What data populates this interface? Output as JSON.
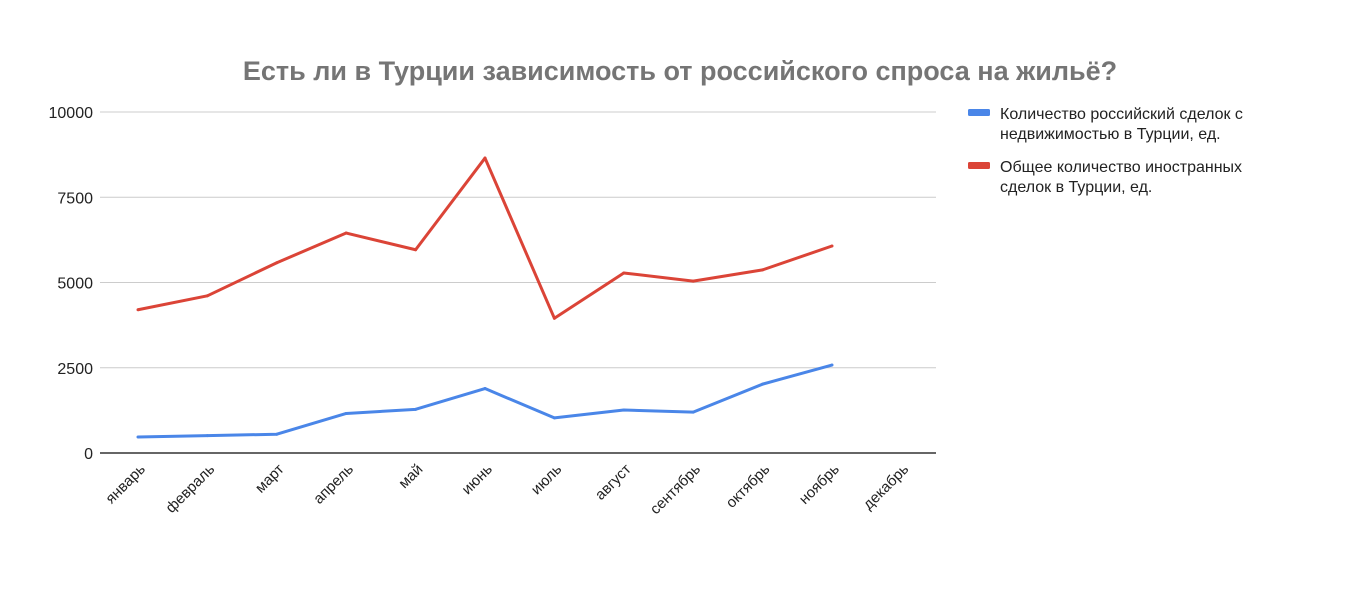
{
  "chart_data": {
    "type": "line",
    "title": "Есть ли в Турции зависимость от российского спроса на жильё?",
    "xlabel": "",
    "ylabel": "",
    "ylim": [
      0,
      10000
    ],
    "yticks": [
      "0",
      "2500",
      "5000",
      "7500",
      "10000"
    ],
    "grid": true,
    "legend_position": "right",
    "categories": [
      "январь",
      "февраль",
      "март",
      "апрель",
      "май",
      "июнь",
      "июль",
      "август",
      "сентябрь",
      "октябрь",
      "ноябрь",
      "декабрь"
    ],
    "series": [
      {
        "name": "Количество российский сделок с недвижимостью в Турции, ед.",
        "legend_lines": [
          "Количество российский сделок с",
          "недвижимостью в Турции, ед."
        ],
        "color": "#4a86e8",
        "values": [
          470,
          510,
          550,
          1160,
          1280,
          1890,
          1030,
          1260,
          1200,
          2020,
          2580,
          null
        ]
      },
      {
        "name": "Общее количество иностранных сделок в Турции, ед.",
        "legend_lines": [
          "Общее количество иностранных",
          "сделок в Турции, ед."
        ],
        "color": "#db4437",
        "values": [
          4200,
          4610,
          5580,
          6450,
          5960,
          8650,
          3950,
          5280,
          5040,
          5370,
          6070,
          null
        ]
      }
    ]
  }
}
